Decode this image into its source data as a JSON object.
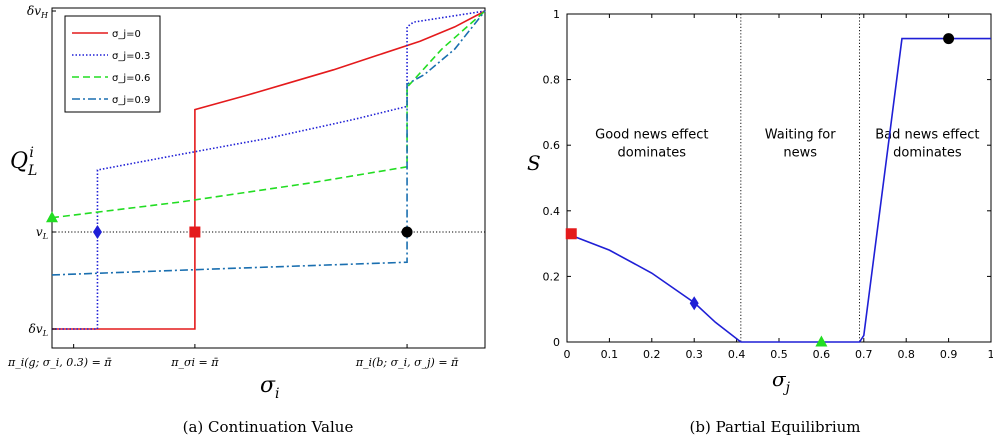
{
  "chart_data": [
    {
      "type": "line",
      "caption": "(a)  Continuation Value",
      "xlabel": "σ",
      "xlabel_sub": "i",
      "ylabel": "Q",
      "ylabel_sup": "i",
      "ylabel_sub": "L",
      "xlim": [
        0,
        1
      ],
      "ylim": [
        0,
        1
      ],
      "y_tick_labels": [
        {
          "value": 1.0,
          "label": "δv",
          "sub": "H"
        },
        {
          "value": 0.305,
          "label": "v",
          "sub": "L"
        },
        {
          "value": 0.0,
          "label": "δv",
          "sub": "L"
        }
      ],
      "x_tick_labels": [
        {
          "value": 0.05,
          "label": "π_i(g; σ_i, 0.3) = π̄"
        },
        {
          "value": 0.33,
          "label": "π_σi = π̄"
        },
        {
          "value": 0.82,
          "label": "π_i(b; σ_i, σ_j) = π̄"
        }
      ],
      "reference_line": {
        "y": 0.305,
        "style": "dotted"
      },
      "legend": {
        "placement": "top-left",
        "entries": [
          "σ_j=0",
          "σ_j=0.3",
          "σ_j=0.6",
          "σ_j=0.9"
        ]
      },
      "series": [
        {
          "name": "σ_j=0",
          "color": "#e41a1c",
          "dash": "solid",
          "x": [
            0,
            0.33,
            0.33,
            0.45,
            0.55,
            0.65,
            0.75,
            0.85,
            0.93,
            1.0
          ],
          "y": [
            0,
            0,
            0.69,
            0.735,
            0.775,
            0.815,
            0.86,
            0.905,
            0.95,
            1.0
          ]
        },
        {
          "name": "σ_j=0.3",
          "color": "#1f1fd6",
          "dash": "dotted",
          "x": [
            0,
            0.105,
            0.105,
            0.3,
            0.5,
            0.7,
            0.82,
            0.82,
            0.835,
            1.0
          ],
          "y": [
            0,
            0,
            0.5,
            0.55,
            0.6,
            0.66,
            0.7,
            0.95,
            0.965,
            1.0
          ]
        },
        {
          "name": "σ_j=0.6",
          "color": "#22dd22",
          "dash": "dashed",
          "x": [
            0,
            0.3,
            0.6,
            0.82,
            0.82,
            0.9,
            1.0
          ],
          "y": [
            0.35,
            0.4,
            0.46,
            0.51,
            0.76,
            0.88,
            1.0
          ]
        },
        {
          "name": "σ_j=0.9",
          "color": "#1a6fb0",
          "dash": "dashdot",
          "x": [
            0,
            0.4,
            0.82,
            0.82,
            0.86,
            0.93,
            1.0
          ],
          "y": [
            0.17,
            0.19,
            0.21,
            0.77,
            0.8,
            0.88,
            1.0
          ]
        }
      ],
      "markers": [
        {
          "x": 0.0,
          "y": 0.35,
          "shape": "triangle",
          "color": "#22dd22"
        },
        {
          "x": 0.105,
          "y": 0.305,
          "shape": "diamond",
          "color": "#1f1fd6"
        },
        {
          "x": 0.33,
          "y": 0.305,
          "shape": "square",
          "color": "#e41a1c"
        },
        {
          "x": 0.82,
          "y": 0.305,
          "shape": "circle",
          "color": "#000000"
        }
      ]
    },
    {
      "type": "line",
      "caption": "(b)  Partial Equilibrium",
      "xlabel": "σ",
      "xlabel_sub": "j",
      "ylabel": "S",
      "xlim": [
        0,
        1
      ],
      "ylim": [
        0,
        1
      ],
      "x_ticks": [
        "0",
        "0.1",
        "0.2",
        "0.3",
        "0.4",
        "0.5",
        "0.6",
        "0.7",
        "0.8",
        "0.9",
        "1"
      ],
      "y_ticks": [
        "0",
        "0.2",
        "0.4",
        "0.6",
        "0.8",
        "1"
      ],
      "vlines": [
        0.41,
        0.69
      ],
      "annotations": [
        {
          "lines": [
            "Good news effect",
            "dominates"
          ],
          "x": 0.2,
          "y": 0.62
        },
        {
          "lines": [
            "Waiting for",
            "news"
          ],
          "x": 0.55,
          "y": 0.62
        },
        {
          "lines": [
            "Bad news effect",
            "dominates"
          ],
          "x": 0.85,
          "y": 0.62
        }
      ],
      "series": [
        {
          "name": "",
          "color": "#1f1fd6",
          "dash": "solid",
          "x": [
            0.0,
            0.1,
            0.2,
            0.3,
            0.35,
            0.41,
            0.69,
            0.7,
            0.79,
            1.0
          ],
          "y": [
            0.33,
            0.28,
            0.21,
            0.12,
            0.06,
            0.0,
            0.0,
            0.02,
            0.925,
            0.925
          ]
        }
      ],
      "markers": [
        {
          "x": 0.01,
          "y": 0.33,
          "shape": "square",
          "color": "#e41a1c"
        },
        {
          "x": 0.3,
          "y": 0.118,
          "shape": "diamond",
          "color": "#1f1fd6"
        },
        {
          "x": 0.6,
          "y": 0.0,
          "shape": "triangle",
          "color": "#22dd22"
        },
        {
          "x": 0.9,
          "y": 0.925,
          "shape": "circle",
          "color": "#000000"
        }
      ]
    }
  ]
}
